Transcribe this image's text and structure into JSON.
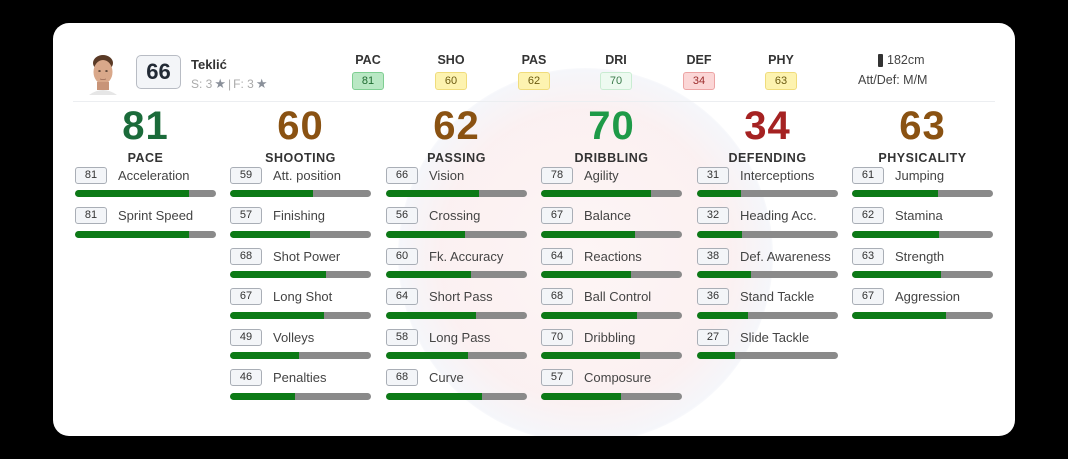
{
  "player": {
    "name": "Teklić",
    "overall": "66",
    "skill_moves_label": "S: 3",
    "weak_foot_label": "F: 3",
    "separator": "|",
    "star_icon": "★",
    "height": "182cm",
    "work_rates": "Att/Def: M/M"
  },
  "header_stats": [
    {
      "label": "PAC",
      "value": "81",
      "tone": "green"
    },
    {
      "label": "SHO",
      "value": "60",
      "tone": "yellow"
    },
    {
      "label": "PAS",
      "value": "62",
      "tone": "yellow"
    },
    {
      "label": "DRI",
      "value": "70",
      "tone": "lightgreen"
    },
    {
      "label": "DEF",
      "value": "34",
      "tone": "red"
    },
    {
      "label": "PHY",
      "value": "63",
      "tone": "yellow"
    }
  ],
  "colors": {
    "green": "#1b6b3a",
    "brightgreen": "#1e9a48",
    "brown": "#8a5212",
    "red": "#a52222",
    "bar_fill": "#0c7a16",
    "bar_track": "#8a8a8a"
  },
  "categories": [
    {
      "name": "PACE",
      "value": "81",
      "color": "#1b6b3a",
      "attributes": [
        {
          "name": "Acceleration",
          "value": "81"
        },
        {
          "name": "Sprint Speed",
          "value": "81"
        }
      ]
    },
    {
      "name": "SHOOTING",
      "value": "60",
      "color": "#8a5212",
      "attributes": [
        {
          "name": "Att. position",
          "value": "59"
        },
        {
          "name": "Finishing",
          "value": "57"
        },
        {
          "name": "Shot Power",
          "value": "68"
        },
        {
          "name": "Long Shot",
          "value": "67"
        },
        {
          "name": "Volleys",
          "value": "49"
        },
        {
          "name": "Penalties",
          "value": "46"
        }
      ]
    },
    {
      "name": "PASSING",
      "value": "62",
      "color": "#8a5212",
      "attributes": [
        {
          "name": "Vision",
          "value": "66"
        },
        {
          "name": "Crossing",
          "value": "56"
        },
        {
          "name": "Fk. Accuracy",
          "value": "60"
        },
        {
          "name": "Short Pass",
          "value": "64"
        },
        {
          "name": "Long Pass",
          "value": "58"
        },
        {
          "name": "Curve",
          "value": "68"
        }
      ]
    },
    {
      "name": "DRIBBLING",
      "value": "70",
      "color": "#1e9a48",
      "attributes": [
        {
          "name": "Agility",
          "value": "78"
        },
        {
          "name": "Balance",
          "value": "67"
        },
        {
          "name": "Reactions",
          "value": "64"
        },
        {
          "name": "Ball Control",
          "value": "68"
        },
        {
          "name": "Dribbling",
          "value": "70"
        },
        {
          "name": "Composure",
          "value": "57"
        }
      ]
    },
    {
      "name": "DEFENDING",
      "value": "34",
      "color": "#a52222",
      "attributes": [
        {
          "name": "Interceptions",
          "value": "31"
        },
        {
          "name": "Heading Acc.",
          "value": "32"
        },
        {
          "name": "Def. Awareness",
          "value": "38"
        },
        {
          "name": "Stand Tackle",
          "value": "36"
        },
        {
          "name": "Slide Tackle",
          "value": "27"
        }
      ]
    },
    {
      "name": "PHYSICALITY",
      "value": "63",
      "color": "#8a5212",
      "attributes": [
        {
          "name": "Jumping",
          "value": "61"
        },
        {
          "name": "Stamina",
          "value": "62"
        },
        {
          "name": "Strength",
          "value": "63"
        },
        {
          "name": "Aggression",
          "value": "67"
        }
      ]
    }
  ]
}
